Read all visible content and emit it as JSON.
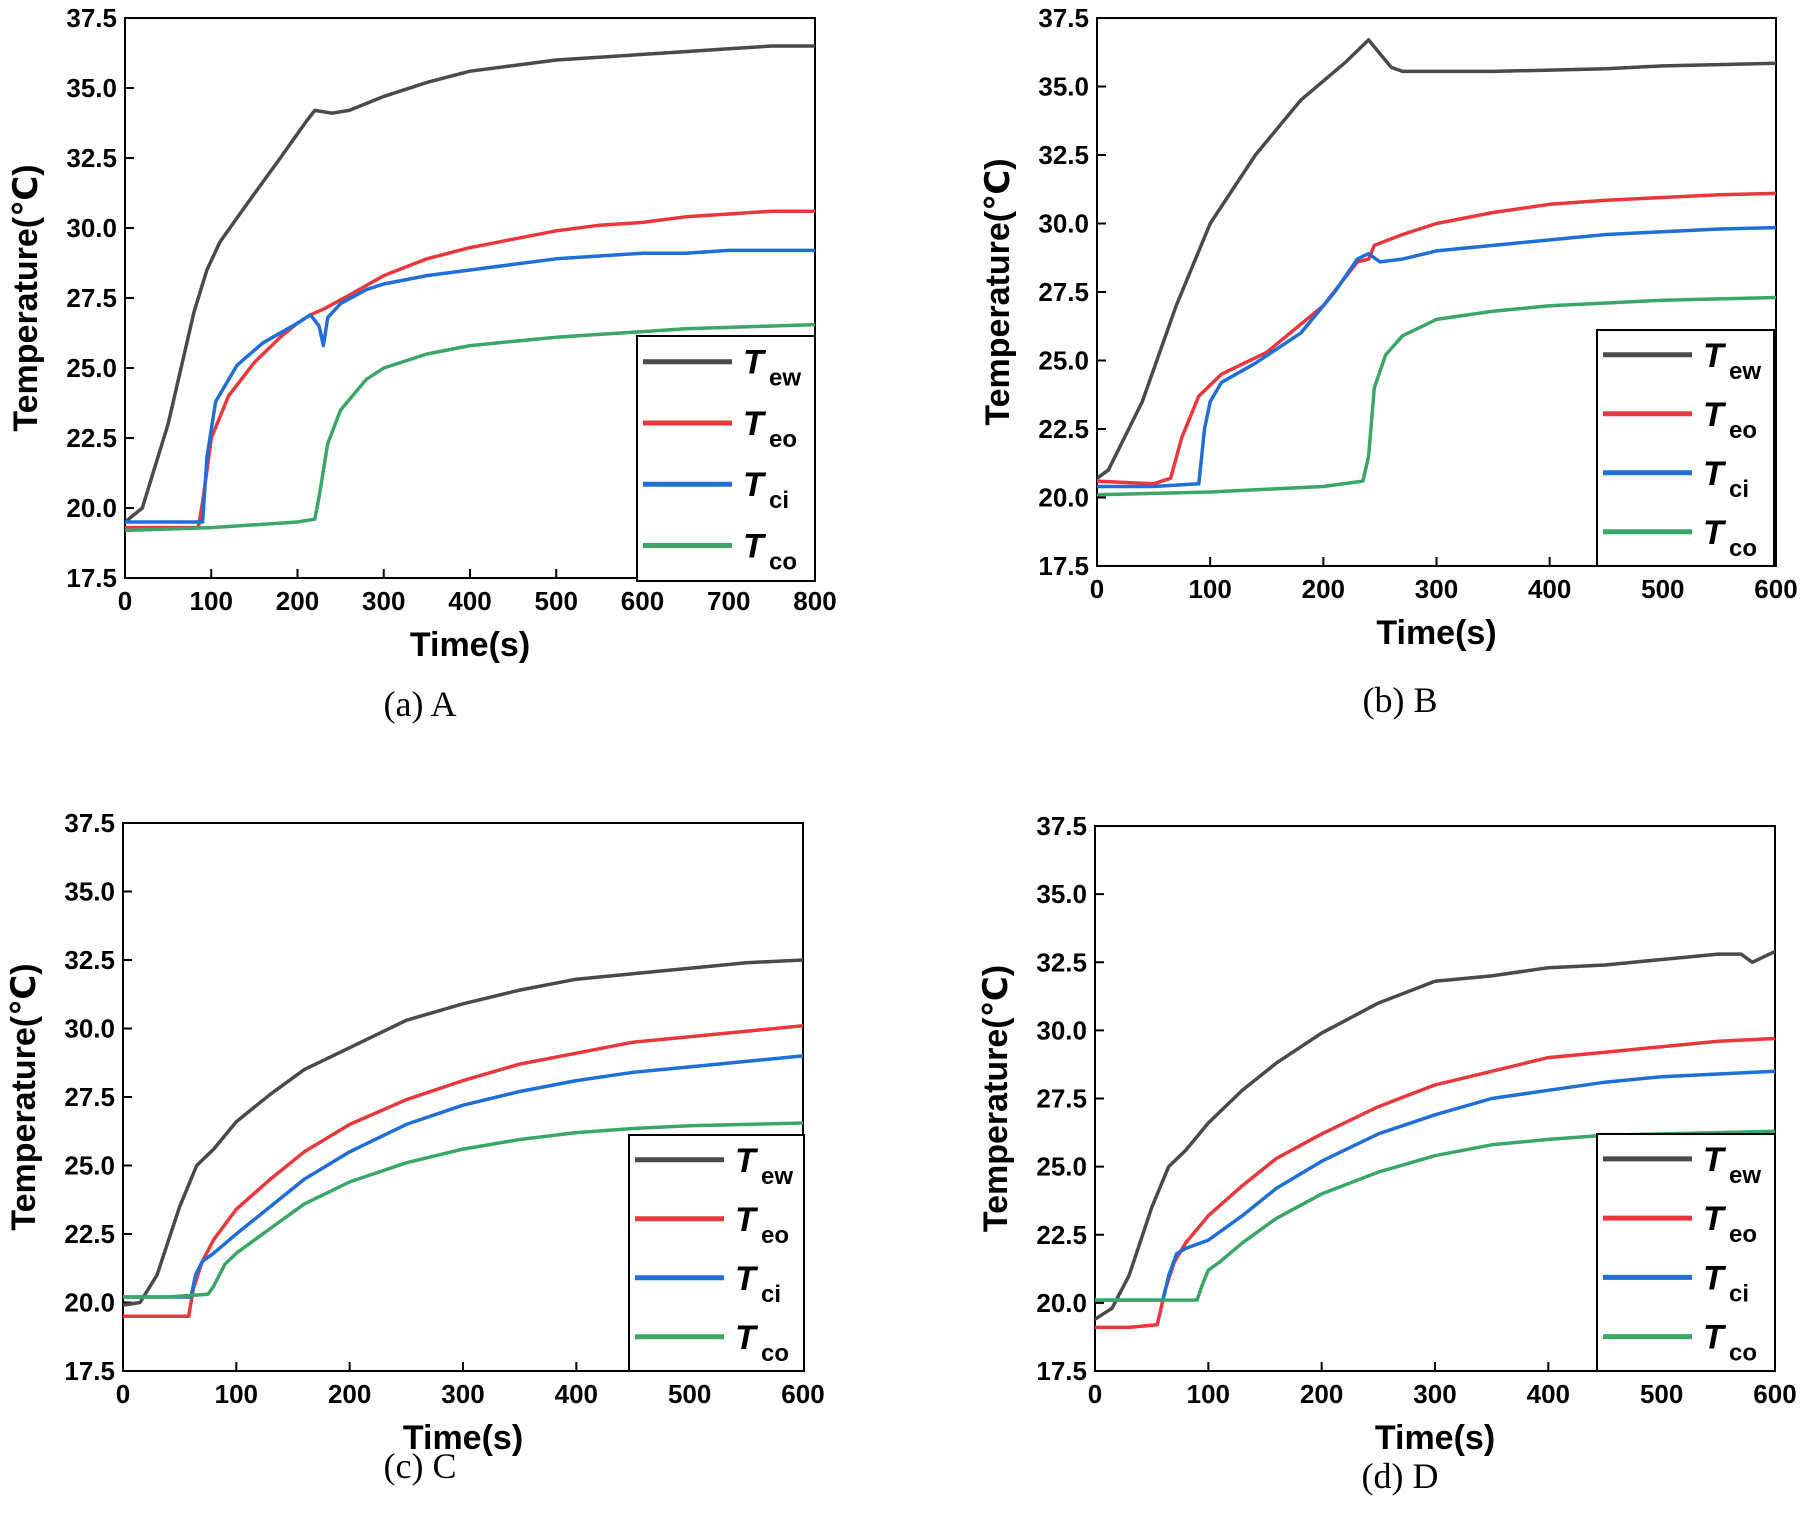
{
  "figure": {
    "panel_count": 4,
    "colors": {
      "Tew": "#4a4a4a",
      "Teo": "#e8383d",
      "Tci": "#1f6fd6",
      "Tco": "#3aa667"
    }
  },
  "chart_data": [
    {
      "id": "a",
      "type": "line",
      "caption": "(a)  A",
      "xlabel": "Time(s)",
      "ylabel": "Temperature(℃)",
      "xlim": [
        0,
        800
      ],
      "ylim": [
        17.5,
        37.5
      ],
      "xticks": [
        0,
        100,
        200,
        300,
        400,
        500,
        600,
        700,
        800
      ],
      "xtick_labels": [
        "0",
        "100",
        "200",
        "300",
        "400",
        "500",
        "600",
        "700",
        "800"
      ],
      "yticks": [
        17.5,
        20.0,
        22.5,
        25.0,
        27.5,
        30.0,
        32.5,
        35.0,
        37.5
      ],
      "ytick_labels": [
        "17.5",
        "20.0",
        "22.5",
        "25.0",
        "27.5",
        "30.0",
        "32.5",
        "35.0",
        "37.5"
      ],
      "legend_position": "bottom-right",
      "series": [
        {
          "key": "Tew",
          "name": "T",
          "sub": "ew",
          "x": [
            0,
            20,
            50,
            80,
            95,
            110,
            140,
            180,
            210,
            220,
            240,
            260,
            300,
            350,
            400,
            450,
            500,
            550,
            600,
            650,
            700,
            750,
            800
          ],
          "y": [
            19.5,
            20,
            23,
            27,
            28.5,
            29.5,
            30.8,
            32.5,
            33.8,
            34.2,
            34.1,
            34.2,
            34.7,
            35.2,
            35.6,
            35.8,
            36,
            36.1,
            36.2,
            36.3,
            36.4,
            36.5,
            36.5
          ]
        },
        {
          "key": "Teo",
          "name": "T",
          "sub": "eo",
          "x": [
            0,
            50,
            85,
            90,
            100,
            120,
            150,
            180,
            200,
            215,
            230,
            260,
            300,
            350,
            400,
            450,
            500,
            550,
            600,
            650,
            700,
            750,
            800
          ],
          "y": [
            19.3,
            19.3,
            19.3,
            20.2,
            22.5,
            24,
            25.2,
            26.1,
            26.6,
            26.9,
            27.1,
            27.6,
            28.3,
            28.9,
            29.3,
            29.6,
            29.9,
            30.1,
            30.2,
            30.4,
            30.5,
            30.6,
            30.6
          ]
        },
        {
          "key": "Tci",
          "name": "T",
          "sub": "ci",
          "x": [
            0,
            50,
            90,
            95,
            105,
            130,
            160,
            200,
            215,
            225,
            230,
            235,
            250,
            280,
            300,
            350,
            400,
            450,
            500,
            550,
            600,
            650,
            700,
            750,
            800
          ],
          "y": [
            19.5,
            19.5,
            19.5,
            21.8,
            23.8,
            25.1,
            25.9,
            26.6,
            26.9,
            26.5,
            25.8,
            26.8,
            27.3,
            27.8,
            28,
            28.3,
            28.5,
            28.7,
            28.9,
            29,
            29.1,
            29.1,
            29.2,
            29.2,
            29.2
          ]
        },
        {
          "key": "Tco",
          "name": "T",
          "sub": "co",
          "x": [
            0,
            100,
            200,
            220,
            225,
            235,
            250,
            280,
            300,
            350,
            400,
            450,
            500,
            550,
            600,
            650,
            700,
            750,
            800
          ],
          "y": [
            19.2,
            19.3,
            19.5,
            19.6,
            20.4,
            22.3,
            23.5,
            24.6,
            25,
            25.5,
            25.8,
            25.95,
            26.1,
            26.2,
            26.3,
            26.4,
            26.45,
            26.5,
            26.55
          ]
        }
      ]
    },
    {
      "id": "b",
      "type": "line",
      "caption": "(b)  B",
      "xlabel": "Time(s)",
      "ylabel": "Temperature(℃)",
      "xlim": [
        0,
        600
      ],
      "ylim": [
        17.5,
        37.5
      ],
      "xticks": [
        0,
        100,
        200,
        300,
        400,
        500,
        600
      ],
      "xtick_labels": [
        "0",
        "100",
        "200",
        "300",
        "400",
        "500",
        "600"
      ],
      "yticks": [
        17.5,
        20.0,
        22.5,
        25.0,
        27.5,
        30.0,
        32.5,
        35.0,
        37.5
      ],
      "ytick_labels": [
        "17.5",
        "20.0",
        "22.5",
        "25.0",
        "27.5",
        "30.0",
        "32.5",
        "35.0",
        "37.5"
      ],
      "legend_position": "bottom-right",
      "series": [
        {
          "key": "Tew",
          "name": "T",
          "sub": "ew",
          "x": [
            0,
            10,
            40,
            70,
            100,
            140,
            180,
            220,
            240,
            250,
            260,
            270,
            300,
            350,
            400,
            450,
            500,
            550,
            600
          ],
          "y": [
            20.7,
            21,
            23.5,
            27,
            30,
            32.5,
            34.5,
            35.9,
            36.7,
            36.2,
            35.7,
            35.55,
            35.55,
            35.55,
            35.6,
            35.65,
            35.75,
            35.8,
            35.85
          ]
        },
        {
          "key": "Teo",
          "name": "T",
          "sub": "eo",
          "x": [
            0,
            50,
            65,
            75,
            90,
            110,
            150,
            200,
            230,
            240,
            245,
            270,
            300,
            350,
            400,
            450,
            500,
            550,
            600
          ],
          "y": [
            20.6,
            20.5,
            20.7,
            22.2,
            23.7,
            24.5,
            25.3,
            27,
            28.6,
            28.7,
            29.2,
            29.6,
            30,
            30.4,
            30.7,
            30.85,
            30.95,
            31.05,
            31.1
          ]
        },
        {
          "key": "Tci",
          "name": "T",
          "sub": "ci",
          "x": [
            0,
            50,
            90,
            95,
            100,
            110,
            140,
            180,
            210,
            230,
            240,
            250,
            270,
            300,
            350,
            400,
            450,
            500,
            550,
            600
          ],
          "y": [
            20.4,
            20.4,
            20.5,
            22.5,
            23.5,
            24.2,
            24.9,
            26,
            27.5,
            28.7,
            28.9,
            28.6,
            28.7,
            29,
            29.2,
            29.4,
            29.6,
            29.7,
            29.8,
            29.85
          ]
        },
        {
          "key": "Tco",
          "name": "T",
          "sub": "co",
          "x": [
            0,
            100,
            200,
            235,
            240,
            245,
            255,
            270,
            300,
            350,
            400,
            450,
            500,
            550,
            600
          ],
          "y": [
            20.1,
            20.2,
            20.4,
            20.6,
            21.5,
            24,
            25.2,
            25.9,
            26.5,
            26.8,
            27,
            27.1,
            27.2,
            27.25,
            27.3
          ]
        }
      ]
    },
    {
      "id": "c",
      "type": "line",
      "caption": "(c)  C",
      "xlabel": "Time(s)",
      "ylabel": "Temperature(℃)",
      "xlim": [
        0,
        600
      ],
      "ylim": [
        17.5,
        37.5
      ],
      "xticks": [
        0,
        100,
        200,
        300,
        400,
        500,
        600
      ],
      "xtick_labels": [
        "0",
        "100",
        "200",
        "300",
        "400",
        "500",
        "600"
      ],
      "yticks": [
        17.5,
        20.0,
        22.5,
        25.0,
        27.5,
        30.0,
        32.5,
        35.0,
        37.5
      ],
      "ytick_labels": [
        "17.5",
        "20.0",
        "22.5",
        "25.0",
        "27.5",
        "30.0",
        "32.5",
        "35.0",
        "37.5"
      ],
      "legend_position": "bottom-right",
      "series": [
        {
          "key": "Tew",
          "name": "T",
          "sub": "ew",
          "x": [
            0,
            15,
            30,
            50,
            65,
            80,
            100,
            130,
            160,
            200,
            250,
            300,
            350,
            400,
            450,
            500,
            550,
            600
          ],
          "y": [
            19.9,
            20,
            21,
            23.5,
            25,
            25.6,
            26.6,
            27.6,
            28.5,
            29.3,
            30.3,
            30.9,
            31.4,
            31.8,
            32,
            32.2,
            32.4,
            32.5
          ]
        },
        {
          "key": "Teo",
          "name": "T",
          "sub": "eo",
          "x": [
            0,
            30,
            58,
            62,
            70,
            80,
            100,
            130,
            160,
            200,
            250,
            300,
            350,
            400,
            450,
            500,
            550,
            600
          ],
          "y": [
            19.5,
            19.5,
            19.5,
            20.5,
            21.5,
            22.3,
            23.4,
            24.5,
            25.5,
            26.5,
            27.4,
            28.1,
            28.7,
            29.1,
            29.5,
            29.7,
            29.9,
            30.1
          ]
        },
        {
          "key": "Tci",
          "name": "T",
          "sub": "ci",
          "x": [
            0,
            30,
            60,
            64,
            70,
            80,
            100,
            130,
            160,
            200,
            250,
            300,
            350,
            400,
            450,
            500,
            550,
            600
          ],
          "y": [
            20.2,
            20.2,
            20.2,
            21,
            21.5,
            21.8,
            22.5,
            23.5,
            24.5,
            25.5,
            26.5,
            27.2,
            27.7,
            28.1,
            28.4,
            28.6,
            28.8,
            29
          ]
        },
        {
          "key": "Tco",
          "name": "T",
          "sub": "co",
          "x": [
            0,
            40,
            75,
            80,
            90,
            100,
            130,
            160,
            200,
            250,
            300,
            350,
            400,
            450,
            500,
            550,
            600
          ],
          "y": [
            20.2,
            20.2,
            20.3,
            20.6,
            21.4,
            21.8,
            22.7,
            23.6,
            24.4,
            25.1,
            25.6,
            25.95,
            26.2,
            26.35,
            26.45,
            26.5,
            26.55
          ]
        }
      ]
    },
    {
      "id": "d",
      "type": "line",
      "caption": "(d)  D",
      "xlabel": "Time(s)",
      "ylabel": "Temperature(℃)",
      "xlim": [
        0,
        600
      ],
      "ylim": [
        17.5,
        37.5
      ],
      "xticks": [
        0,
        100,
        200,
        300,
        400,
        500,
        600
      ],
      "xtick_labels": [
        "0",
        "100",
        "200",
        "300",
        "400",
        "500",
        "600"
      ],
      "yticks": [
        17.5,
        20.0,
        22.5,
        25.0,
        27.5,
        30.0,
        32.5,
        35.0,
        37.5
      ],
      "ytick_labels": [
        "17.5",
        "20.0",
        "22.5",
        "25.0",
        "27.5",
        "30.0",
        "32.5",
        "35.0",
        "37.5"
      ],
      "legend_position": "bottom-right",
      "series": [
        {
          "key": "Tew",
          "name": "T",
          "sub": "ew",
          "x": [
            0,
            15,
            30,
            50,
            65,
            80,
            100,
            130,
            160,
            200,
            250,
            300,
            350,
            400,
            450,
            500,
            550,
            570,
            580,
            600
          ],
          "y": [
            19.4,
            19.8,
            21,
            23.5,
            25,
            25.6,
            26.6,
            27.8,
            28.8,
            29.9,
            31,
            31.8,
            32,
            32.3,
            32.4,
            32.6,
            32.8,
            32.8,
            32.5,
            32.9
          ]
        },
        {
          "key": "Teo",
          "name": "T",
          "sub": "eo",
          "x": [
            0,
            30,
            55,
            62,
            70,
            80,
            100,
            130,
            160,
            200,
            250,
            300,
            350,
            400,
            450,
            500,
            550,
            600
          ],
          "y": [
            19.1,
            19.1,
            19.2,
            20.5,
            21.5,
            22.2,
            23.2,
            24.3,
            25.3,
            26.2,
            27.2,
            28,
            28.5,
            29,
            29.2,
            29.4,
            29.6,
            29.7
          ]
        },
        {
          "key": "Tci",
          "name": "T",
          "sub": "ci",
          "x": [
            0,
            30,
            60,
            65,
            72,
            80,
            100,
            130,
            160,
            200,
            250,
            300,
            350,
            400,
            450,
            500,
            550,
            600
          ],
          "y": [
            20.1,
            20.1,
            20.1,
            21,
            21.8,
            22,
            22.3,
            23.2,
            24.2,
            25.2,
            26.2,
            26.9,
            27.5,
            27.8,
            28.1,
            28.3,
            28.4,
            28.5
          ]
        },
        {
          "key": "Tco",
          "name": "T",
          "sub": "co",
          "x": [
            0,
            40,
            90,
            95,
            100,
            110,
            130,
            160,
            200,
            250,
            300,
            350,
            400,
            450,
            500,
            550,
            600
          ],
          "y": [
            20.1,
            20.1,
            20.1,
            20.7,
            21.2,
            21.5,
            22.2,
            23.1,
            24,
            24.8,
            25.4,
            25.8,
            26,
            26.15,
            26.2,
            26.25,
            26.3
          ]
        }
      ]
    }
  ]
}
